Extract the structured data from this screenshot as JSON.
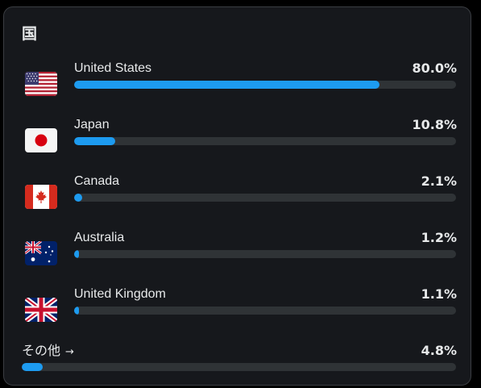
{
  "section": {
    "title": "国"
  },
  "countries": [
    {
      "name": "United States",
      "percent": "80.0%",
      "fraction": 0.8
    },
    {
      "name": "Japan",
      "percent": "10.8%",
      "fraction": 0.108
    },
    {
      "name": "Canada",
      "percent": "2.1%",
      "fraction": 0.021
    },
    {
      "name": "Australia",
      "percent": "1.2%",
      "fraction": 0.012
    },
    {
      "name": "United Kingdom",
      "percent": "1.1%",
      "fraction": 0.011
    }
  ],
  "other": {
    "label": "その他",
    "arrow": "→",
    "percent": "4.8%",
    "fraction": 0.048
  },
  "colors": {
    "accent": "#1d9bf0",
    "track": "#2f3336",
    "card": "#16181c"
  }
}
